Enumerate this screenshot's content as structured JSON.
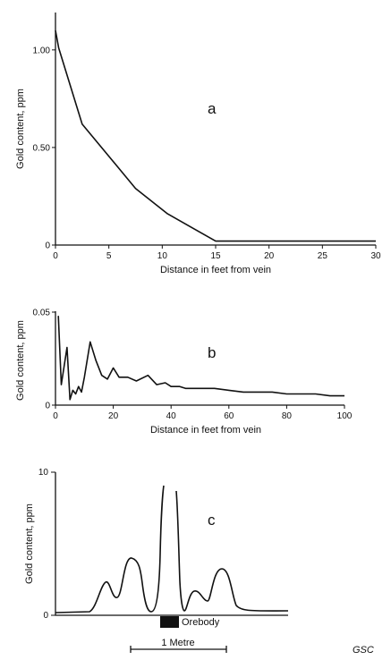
{
  "chart_data": [
    {
      "type": "line",
      "panel_label": "a",
      "xlabel": "Distance in feet from vein",
      "ylabel": "Gold content, ppm",
      "xlim": [
        0,
        30
      ],
      "ylim": [
        0,
        1.1
      ],
      "x_ticks": [
        "0",
        "5",
        "10",
        "15",
        "20",
        "25",
        "30"
      ],
      "y_ticks": [
        "0",
        "0.50",
        "1.00"
      ],
      "series": [
        {
          "x": [
            0,
            0.3,
            2.5,
            7.5,
            10.5,
            15,
            20,
            30
          ],
          "y": [
            1.1,
            1.01,
            0.62,
            0.29,
            0.16,
            0.02,
            0.02,
            0.02
          ]
        }
      ]
    },
    {
      "type": "line",
      "panel_label": "b",
      "xlabel": "Distance in feet from vein",
      "ylabel": "Gold content, ppm",
      "xlim": [
        0,
        100
      ],
      "ylim": [
        0,
        0.05
      ],
      "x_ticks": [
        "0",
        "20",
        "40",
        "60",
        "80",
        "100"
      ],
      "y_ticks": [
        "0",
        "0.05"
      ],
      "series": [
        {
          "x": [
            1,
            2,
            4,
            5,
            6,
            7,
            8,
            9,
            10,
            12,
            14,
            16,
            18,
            20,
            22,
            25,
            28,
            32,
            35,
            38,
            40,
            43,
            45,
            50,
            55,
            60,
            65,
            70,
            75,
            80,
            85,
            90,
            95,
            100
          ],
          "y": [
            0.048,
            0.011,
            0.031,
            0.003,
            0.008,
            0.006,
            0.01,
            0.007,
            0.015,
            0.034,
            0.024,
            0.016,
            0.014,
            0.02,
            0.015,
            0.015,
            0.013,
            0.016,
            0.011,
            0.012,
            0.01,
            0.01,
            0.009,
            0.009,
            0.009,
            0.008,
            0.007,
            0.007,
            0.007,
            0.006,
            0.006,
            0.006,
            0.005,
            0.005
          ]
        }
      ]
    },
    {
      "type": "line",
      "panel_label": "c",
      "ylabel": "Gold content, ppm",
      "ylim": [
        0,
        10
      ],
      "y_ticks": [
        "0",
        "10"
      ],
      "orebody_label": "Orebody",
      "scale_label": "1 Metre"
    }
  ],
  "credit": "GSC"
}
